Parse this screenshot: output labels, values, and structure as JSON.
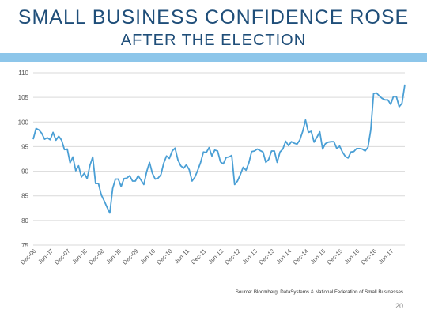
{
  "slide": {
    "title_line1": "SMALL BUSINESS CONFIDENCE ROSE",
    "title_line2": "AFTER THE ELECTION",
    "source": "Source: Bloomberg, DataSystems & National Federation of Small Businesses",
    "page_number": "20"
  },
  "colors": {
    "title": "#1f4e79",
    "band": "#8dc6ea",
    "line": "#4a9fd5",
    "grid": "#d9d9d9"
  },
  "chart_data": {
    "type": "line",
    "title": "",
    "xlabel": "",
    "ylabel": "",
    "ylim": [
      75,
      110
    ],
    "yticks": [
      75,
      80,
      85,
      90,
      95,
      100,
      105,
      110
    ],
    "grid": true,
    "xticks": [
      "Dec-06",
      "Jun-07",
      "Dec-07",
      "Jun-08",
      "Dec-08",
      "Jun-09",
      "Dec-09",
      "Jun-10",
      "Dec-10",
      "Jun-11",
      "Dec-11",
      "Jun-12",
      "Dec-12",
      "Jun-13",
      "Dec-13",
      "Jun-14",
      "Dec-14",
      "Jun-15",
      "Dec-15",
      "Jun-16",
      "Dec-16",
      "Jun-17"
    ],
    "x_start": "Dec-06",
    "x_end": "Jul-17",
    "values": [
      96.5,
      98.7,
      98.4,
      97.7,
      96.5,
      96.8,
      96.4,
      97.9,
      96.3,
      97.1,
      96.3,
      94.4,
      94.5,
      91.7,
      92.9,
      90.1,
      91.1,
      88.8,
      89.6,
      88.5,
      91.2,
      92.9,
      87.5,
      87.5,
      85.2,
      84.0,
      82.7,
      81.5,
      86.5,
      88.4,
      88.4,
      86.9,
      88.5,
      88.6,
      89.1,
      88.0,
      88.0,
      89.1,
      88.2,
      87.3,
      89.9,
      91.8,
      89.6,
      88.4,
      88.6,
      89.3,
      91.6,
      93.1,
      92.6,
      94.1,
      94.7,
      92.3,
      91.1,
      90.6,
      91.3,
      90.3,
      88.0,
      88.8,
      90.2,
      91.8,
      93.9,
      93.8,
      94.8,
      93.1,
      94.3,
      94.1,
      91.9,
      91.5,
      92.8,
      92.9,
      93.2,
      87.3,
      88.0,
      89.3,
      90.8,
      90.2,
      91.7,
      94.0,
      94.1,
      94.5,
      94.2,
      93.9,
      91.8,
      92.4,
      94.1,
      94.1,
      91.8,
      93.9,
      94.5,
      96.1,
      95.2,
      96.0,
      95.7,
      95.5,
      96.4,
      98.1,
      100.4,
      97.9,
      98.1,
      95.9,
      96.9,
      98.0,
      94.5,
      95.6,
      95.9,
      96.0,
      96.0,
      94.6,
      95.1,
      93.9,
      93.0,
      92.7,
      93.9,
      94.0,
      94.6,
      94.6,
      94.5,
      94.1,
      94.9,
      98.4,
      105.8,
      105.9,
      105.3,
      104.8,
      104.5,
      104.5,
      103.6,
      105.2,
      105.2,
      103.1,
      103.8,
      107.6
    ]
  }
}
